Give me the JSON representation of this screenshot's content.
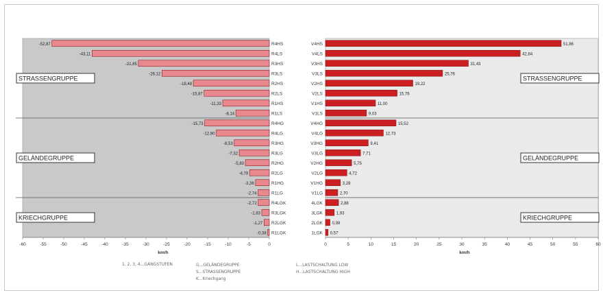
{
  "colors": {
    "bar_fill_left": "#e9888e",
    "bar_fill_right": "#cc1f22",
    "bar_stroke": "#8a1c20",
    "panel_left_bg": "#c9c9c9",
    "panel_right_bg": "#eaeaea",
    "group_label_border": "#333333"
  },
  "chart_data": [
    {
      "type": "bar",
      "orientation": "horizontal",
      "xlabel": "km/h",
      "xlim": [
        -60,
        0
      ],
      "xticks": [
        "-60",
        "-55",
        "-50",
        "-45",
        "-40",
        "-35",
        "-30",
        "-25",
        "-20",
        "-15",
        "-10",
        "-5",
        "0"
      ],
      "categories": [
        "R4HS",
        "R4LS",
        "R3HS",
        "R3LS",
        "R2HS",
        "R2LS",
        "R1HS",
        "R1LS",
        "R4HG",
        "R4LG",
        "R3HG",
        "R3LG",
        "R2HG",
        "R2LG",
        "R1HG",
        "R1LG",
        "R4LGK",
        "R3LGK",
        "R2LGK",
        "R1LGK"
      ],
      "values": [
        -52.87,
        -43.11,
        -31.85,
        -26.12,
        -18.48,
        -15.87,
        -11.33,
        -8.14,
        -15.73,
        -12.9,
        -8.53,
        -7.32,
        -5.83,
        -4.78,
        -3.36,
        -2.74,
        -2.72,
        -1.83,
        -1.27,
        -0.38
      ],
      "data_labels": [
        "-52,87",
        "-43,11",
        "-31,85",
        "-26,12",
        "-18,48",
        "-15,87",
        "-11,33",
        "-8,14",
        "-15,73",
        "-12,90",
        "-8,53",
        "-7,32",
        "-5,83",
        "-4,78",
        "-3,36",
        "-2,74",
        "-2,72",
        "-1,83",
        "-1,27",
        "-0,38"
      ],
      "groups": [
        {
          "label": "STRASSENGRUPPE",
          "count": 8
        },
        {
          "label": "GELÄNDEGRUPPE",
          "count": 8
        },
        {
          "label": "KRIECHGRUPPE",
          "count": 4
        }
      ]
    },
    {
      "type": "bar",
      "orientation": "horizontal",
      "xlabel": "km/h",
      "xlim": [
        0,
        60
      ],
      "xticks": [
        "0",
        "5",
        "10",
        "15",
        "20",
        "25",
        "30",
        "35",
        "40",
        "45",
        "50",
        "55",
        "60"
      ],
      "categories": [
        "V4HS",
        "V4LS",
        "V3HS",
        "V3LS",
        "V2HS",
        "V2LS",
        "V1HS",
        "V1LS",
        "V4HG",
        "V4LG",
        "V3HG",
        "V3LG",
        "V2HG",
        "V2LG",
        "V1HG",
        "V1LG",
        "4LGK",
        "3LGK",
        "2LGK",
        "1LGK"
      ],
      "values": [
        51.86,
        42.84,
        31.43,
        25.76,
        19.22,
        15.76,
        11.0,
        9.03,
        15.52,
        12.73,
        9.41,
        7.71,
        5.75,
        4.72,
        3.28,
        2.7,
        2.88,
        1.93,
        0.99,
        0.57
      ],
      "data_labels": [
        "51,86",
        "42,84",
        "31,43",
        "25,76",
        "19,22",
        "15,76",
        "11,00",
        "9,03",
        "15,52",
        "12,73",
        "9,41",
        "7,71",
        "5,75",
        "4,72",
        "3,28",
        "2,70",
        "2,88",
        "1,93",
        "0,99",
        "0,57"
      ],
      "groups": [
        {
          "label": "STRASSENGRUPPE",
          "count": 8
        },
        {
          "label": "GELÄNDEGRUPPE",
          "count": 8
        },
        {
          "label": "KRIECHGRUPPE",
          "count": 4
        }
      ]
    }
  ],
  "legend": {
    "col1": [
      "1, 2, 3, 4...GANGSTUFEN"
    ],
    "col2": [
      "G...GELÄNDEGRUPPE",
      "S...STRASSENGRUPPE",
      "K...Kriechgang"
    ],
    "col3": [
      "L...LASTSCHALTUNG LOW",
      "H...LASTSCHALTUNG HIGH"
    ]
  }
}
